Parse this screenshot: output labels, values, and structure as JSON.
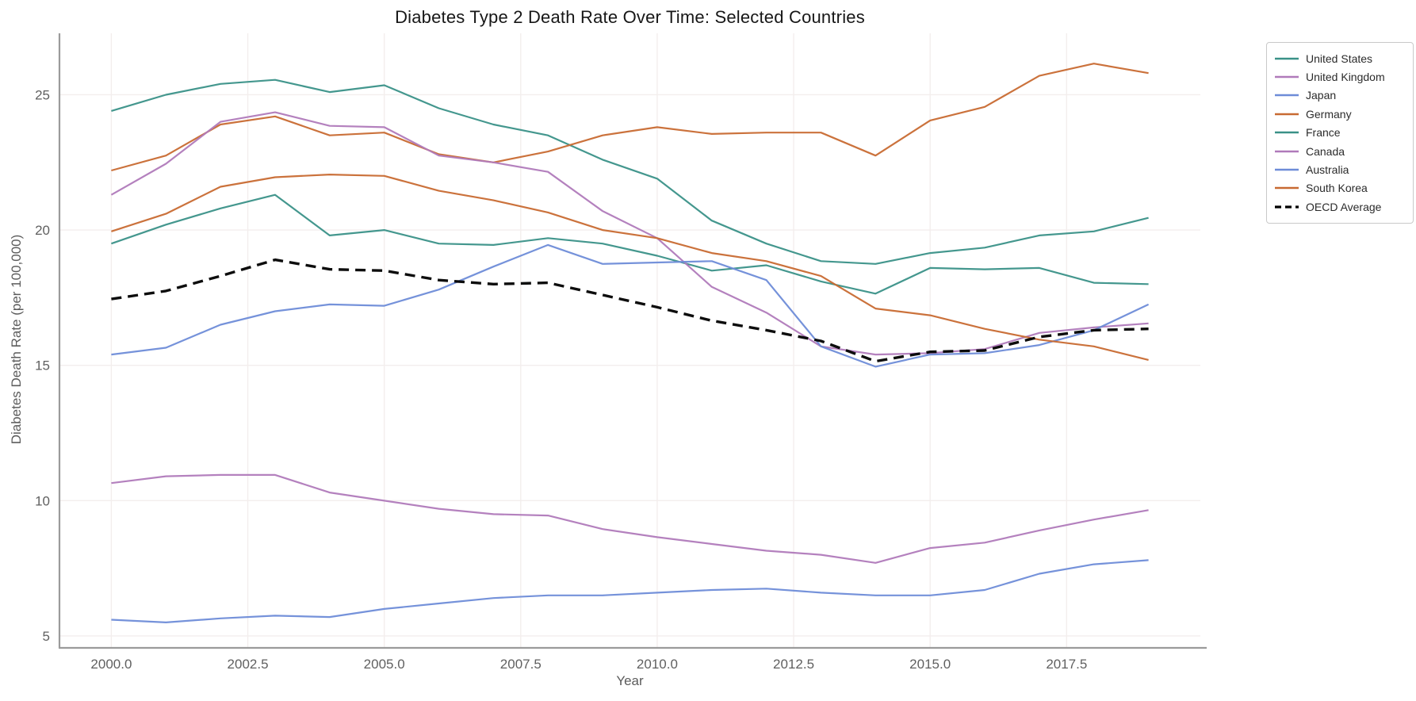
{
  "title": "Diabetes Type 2 Death Rate Over Time: Selected Countries",
  "chart_data": {
    "type": "line",
    "title": "Diabetes Type 2 Death Rate Over Time: Selected Countries",
    "xlabel": "Year",
    "ylabel": "Diabetes Death Rate (per 100,000)",
    "grid": true,
    "legend_position": "outside upper right",
    "xlim": [
      1999.05,
      2019.95
    ],
    "ylim": [
      4.56,
      27.27
    ],
    "x_ticks": [
      2000.0,
      2002.5,
      2005.0,
      2007.5,
      2010.0,
      2012.5,
      2015.0,
      2017.5
    ],
    "x_tick_labels": [
      "2000.0",
      "2002.5",
      "2005.0",
      "2007.5",
      "2010.0",
      "2012.5",
      "2015.0",
      "2017.5"
    ],
    "y_ticks": [
      5,
      10,
      15,
      20,
      25
    ],
    "y_tick_labels": [
      "5",
      "10",
      "15",
      "20",
      "25"
    ],
    "x": [
      2000,
      2001,
      2002,
      2003,
      2004,
      2005,
      2006,
      2007,
      2008,
      2009,
      2010,
      2011,
      2012,
      2013,
      2014,
      2015,
      2016,
      2017,
      2018,
      2019
    ],
    "series": [
      {
        "name": "United States",
        "color": "#3a9188",
        "dash": "solid",
        "values": [
          24.4,
          25.0,
          25.4,
          25.55,
          25.1,
          25.35,
          24.5,
          23.9,
          23.5,
          22.6,
          21.9,
          20.35,
          19.5,
          18.85,
          18.75,
          19.15,
          19.35,
          19.8,
          19.95,
          20.45
        ]
      },
      {
        "name": "United Kingdom",
        "color": "#b07aba",
        "dash": "solid",
        "values": [
          10.65,
          10.9,
          10.95,
          10.95,
          10.3,
          10.0,
          9.7,
          9.5,
          9.45,
          8.95,
          8.65,
          8.4,
          8.15,
          8.0,
          7.7,
          8.25,
          8.45,
          8.9,
          9.3,
          9.65
        ]
      },
      {
        "name": "Japan",
        "color": "#6e8cd8",
        "dash": "solid",
        "values": [
          5.6,
          5.5,
          5.65,
          5.75,
          5.7,
          6.0,
          6.2,
          6.4,
          6.5,
          6.5,
          6.6,
          6.7,
          6.75,
          6.6,
          6.5,
          6.5,
          6.7,
          7.3,
          7.65,
          7.8
        ]
      },
      {
        "name": "Germany",
        "color": "#c86a32",
        "dash": "solid",
        "values": [
          22.2,
          22.75,
          23.9,
          24.2,
          23.5,
          23.6,
          22.8,
          22.5,
          22.9,
          23.5,
          23.8,
          23.55,
          23.6,
          23.6,
          22.75,
          24.05,
          24.55,
          25.7,
          26.15,
          25.8
        ]
      },
      {
        "name": "France",
        "color": "#3a9188",
        "dash": "solid",
        "values": [
          19.5,
          20.2,
          20.8,
          21.3,
          19.8,
          20.0,
          19.5,
          19.45,
          19.7,
          19.5,
          19.05,
          18.5,
          18.7,
          18.1,
          17.65,
          18.6,
          18.55,
          18.6,
          18.05,
          18.0
        ]
      },
      {
        "name": "Canada",
        "color": "#b07aba",
        "dash": "solid",
        "values": [
          21.3,
          22.45,
          24.0,
          24.35,
          23.85,
          23.8,
          22.75,
          22.5,
          22.15,
          20.7,
          19.7,
          17.9,
          16.95,
          15.7,
          15.4,
          15.45,
          15.6,
          16.2,
          16.4,
          16.55
        ]
      },
      {
        "name": "Australia",
        "color": "#6e8cd8",
        "dash": "solid",
        "values": [
          15.4,
          15.65,
          16.5,
          17.0,
          17.25,
          17.2,
          17.8,
          18.65,
          19.45,
          18.75,
          18.8,
          18.85,
          18.15,
          15.7,
          14.95,
          15.4,
          15.45,
          15.75,
          16.3,
          17.25
        ]
      },
      {
        "name": "South Korea",
        "color": "#c86a32",
        "dash": "solid",
        "values": [
          19.95,
          20.6,
          21.6,
          21.95,
          22.05,
          22.0,
          21.45,
          21.1,
          20.65,
          20.0,
          19.7,
          19.15,
          18.85,
          18.3,
          17.1,
          16.85,
          16.35,
          15.95,
          15.7,
          15.2
        ]
      },
      {
        "name": "OECD Average",
        "color": "#000000",
        "dash": "dashed",
        "values": [
          17.45,
          17.75,
          18.3,
          18.9,
          18.55,
          18.5,
          18.15,
          18.0,
          18.05,
          17.6,
          17.15,
          16.65,
          16.3,
          15.9,
          15.15,
          15.5,
          15.55,
          16.05,
          16.3,
          16.35
        ]
      }
    ],
    "style": {
      "grid_color": "#f3eeed",
      "spine_color": "#9b9b9b",
      "tick_label_color": "#606060",
      "line_width": 2.2,
      "dashed_line_width": 3.4
    }
  }
}
